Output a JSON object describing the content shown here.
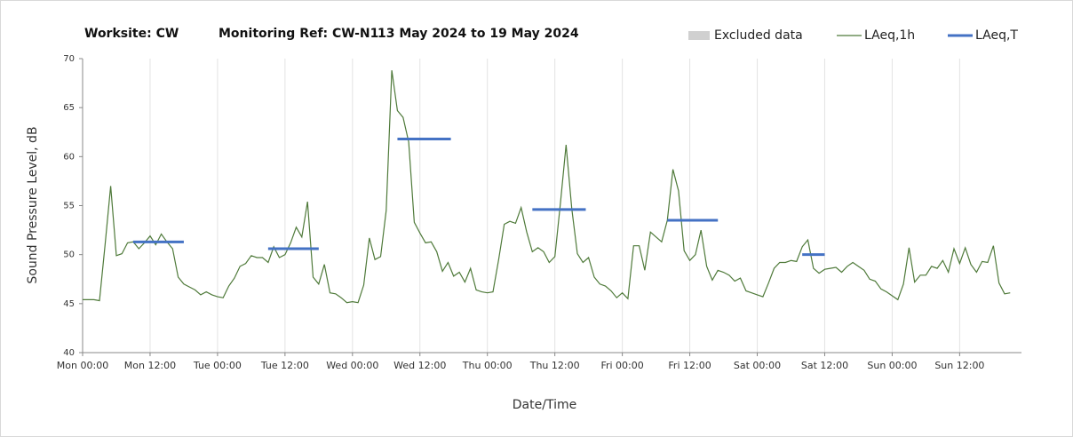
{
  "chart_data": {
    "type": "line",
    "title_parts": [
      "Worksite: CW",
      "Monitoring Ref: CW-N1",
      "13 May 2024 to 19 May 2024"
    ],
    "xlabel": "Date/Time",
    "ylabel": "Sound Pressure Level, dB",
    "xlim": [
      0,
      167
    ],
    "ylim": [
      40,
      70
    ],
    "yticks": [
      40,
      45,
      50,
      55,
      60,
      65,
      70
    ],
    "xticks": [
      {
        "value": 0,
        "label": "Mon 00:00"
      },
      {
        "value": 12,
        "label": "Mon 12:00"
      },
      {
        "value": 24,
        "label": "Tue 00:00"
      },
      {
        "value": 36,
        "label": "Tue 12:00"
      },
      {
        "value": 48,
        "label": "Wed 00:00"
      },
      {
        "value": 60,
        "label": "Wed 12:00"
      },
      {
        "value": 72,
        "label": "Thu 00:00"
      },
      {
        "value": 84,
        "label": "Thu 12:00"
      },
      {
        "value": 96,
        "label": "Fri 00:00"
      },
      {
        "value": 108,
        "label": "Fri 12:00"
      },
      {
        "value": 120,
        "label": "Sat 00:00"
      },
      {
        "value": 132,
        "label": "Sat 12:00"
      },
      {
        "value": 144,
        "label": "Sun 00:00"
      },
      {
        "value": 156,
        "label": "Sun 12:00"
      }
    ],
    "grid": "x",
    "legend_position": "top-right",
    "excluded": {
      "name": "Excluded data",
      "color": "#d0d0d0"
    },
    "series": [
      {
        "name": "LAeq,1h",
        "color": "#4f7a3a",
        "x": [
          0,
          1,
          2,
          3,
          4,
          5,
          6,
          7,
          8,
          9,
          10,
          11,
          12,
          13,
          14,
          15,
          16,
          17,
          18,
          19,
          20,
          21,
          22,
          23,
          24,
          25,
          26,
          27,
          28,
          29,
          30,
          31,
          32,
          33,
          34,
          35,
          36,
          37,
          38,
          39,
          40,
          41,
          42,
          43,
          44,
          45,
          46,
          47,
          48,
          49,
          50,
          51,
          52,
          53,
          54,
          55,
          56,
          57,
          58,
          59,
          60,
          61,
          62,
          63,
          64,
          65,
          66,
          67,
          68,
          69,
          70,
          71,
          72,
          73,
          74,
          75,
          76,
          77,
          78,
          79,
          80,
          81,
          82,
          83,
          84,
          85,
          86,
          87,
          88,
          89,
          90,
          91,
          92,
          93,
          94,
          95,
          96,
          97,
          98,
          99,
          100,
          101,
          102,
          103,
          104,
          105,
          106,
          107,
          108,
          109,
          110,
          111,
          112,
          113,
          114,
          115,
          116,
          117,
          118,
          119,
          120,
          121,
          122,
          123,
          124,
          125,
          126,
          127,
          128,
          129,
          130,
          131,
          132,
          133,
          134,
          135,
          136,
          137,
          138,
          139,
          140,
          141,
          142,
          143,
          144,
          145,
          146,
          147,
          148,
          149,
          150,
          151,
          152,
          153,
          154,
          155,
          156,
          157,
          158,
          159,
          160,
          161,
          162,
          163,
          164,
          165
        ],
        "values": [
          45.4,
          45.4,
          45.4,
          45.3,
          51,
          57,
          49.9,
          50.1,
          51.2,
          51.3,
          50.6,
          51.2,
          51.9,
          51,
          52.1,
          51.3,
          50.6,
          47.7,
          47,
          46.7,
          46.4,
          45.9,
          46.2,
          45.9,
          45.7,
          45.6,
          46.8,
          47.6,
          48.8,
          49.1,
          49.9,
          49.7,
          49.7,
          49.2,
          50.8,
          49.7,
          50,
          51.2,
          52.8,
          51.8,
          55.4,
          47.7,
          47,
          49,
          46.1,
          46,
          45.6,
          45.1,
          45.2,
          45.1,
          46.9,
          51.7,
          49.5,
          49.8,
          54.5,
          68.8,
          64.7,
          64,
          61.5,
          53.3,
          52.2,
          51.2,
          51.3,
          50.3,
          48.3,
          49.2,
          47.8,
          48.2,
          47.2,
          48.6,
          46.4,
          46.2,
          46.1,
          46.2,
          49.5,
          53.1,
          53.4,
          53.2,
          54.8,
          52.3,
          50.3,
          50.7,
          50.3,
          49.2,
          49.8,
          55.3,
          61.2,
          54.7,
          50.1,
          49.2,
          49.7,
          47.7,
          47,
          46.8,
          46.3,
          45.6,
          46.1,
          45.5,
          50.9,
          50.9,
          48.4,
          52.3,
          51.8,
          51.3,
          53.5,
          58.7,
          56.5,
          50.4,
          49.4,
          50,
          52.5,
          48.8,
          47.4,
          48.4,
          48.2,
          47.9,
          47.3,
          47.6,
          46.3,
          46.1,
          45.9,
          45.7,
          47.1,
          48.6,
          49.2,
          49.2,
          49.4,
          49.3,
          50.8,
          51.5,
          48.6,
          48.1,
          48.5,
          48.6,
          48.7,
          48.2,
          48.8,
          49.2,
          48.8,
          48.4,
          47.5,
          47.3,
          46.5,
          46.2,
          45.8,
          45.4,
          47,
          50.7,
          47.2,
          47.9,
          47.9,
          48.8,
          48.6,
          49.4,
          48.2,
          50.6,
          49.1,
          50.7,
          49,
          48.2,
          49.3,
          49.2,
          50.9,
          47.1,
          46,
          46.1
        ]
      },
      {
        "name": "LAeq,T",
        "color": "#4472c4",
        "segments": [
          {
            "start": 9,
            "end": 18,
            "value": 51.3
          },
          {
            "start": 33,
            "end": 42,
            "value": 50.6
          },
          {
            "start": 56,
            "end": 65.5,
            "value": 61.8
          },
          {
            "start": 80,
            "end": 89.5,
            "value": 54.6
          },
          {
            "start": 104,
            "end": 113,
            "value": 53.5
          },
          {
            "start": 128,
            "end": 132,
            "value": 50
          }
        ]
      }
    ]
  }
}
